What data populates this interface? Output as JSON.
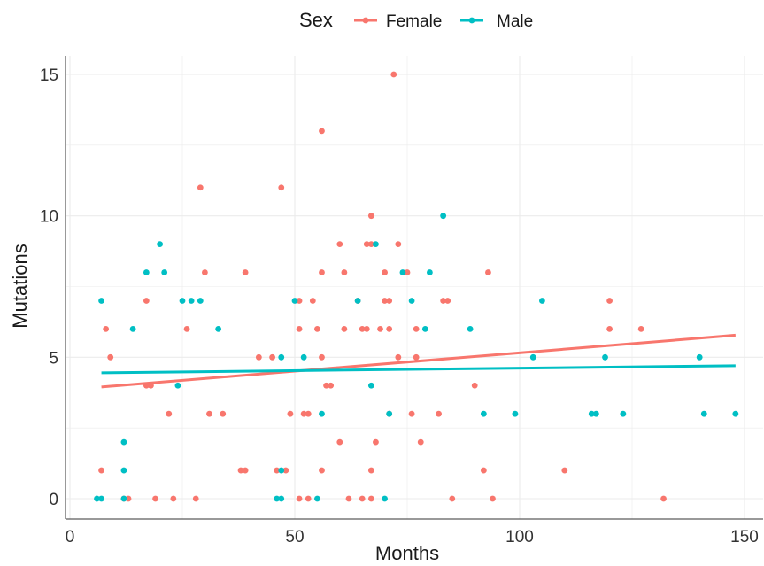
{
  "chart_data": {
    "type": "scatter",
    "title": "",
    "xlabel": "Months",
    "ylabel": "Mutations",
    "xlim": [
      0,
      150
    ],
    "ylim": [
      0,
      15
    ],
    "x_ticks": [
      "0",
      "50",
      "100",
      "150"
    ],
    "y_ticks": [
      "0",
      "5",
      "10",
      "15"
    ],
    "grid": true,
    "legend": {
      "title": "Sex",
      "placement": "top"
    },
    "series": [
      {
        "name": "Female",
        "color": "#F8766D",
        "trend": {
          "x": [
            7,
            148
          ],
          "y": [
            3.95,
            5.78
          ]
        },
        "points": [
          [
            7,
            1
          ],
          [
            8,
            6
          ],
          [
            9,
            5
          ],
          [
            12,
            0
          ],
          [
            13,
            0
          ],
          [
            17,
            7
          ],
          [
            17,
            4
          ],
          [
            18,
            4
          ],
          [
            19,
            0
          ],
          [
            22,
            3
          ],
          [
            23,
            0
          ],
          [
            26,
            6
          ],
          [
            28,
            0
          ],
          [
            29,
            11
          ],
          [
            30,
            8
          ],
          [
            31,
            3
          ],
          [
            34,
            3
          ],
          [
            38,
            1
          ],
          [
            39,
            1
          ],
          [
            39,
            8
          ],
          [
            42,
            5
          ],
          [
            45,
            5
          ],
          [
            46,
            1
          ],
          [
            47,
            11
          ],
          [
            48,
            1
          ],
          [
            49,
            3
          ],
          [
            51,
            7
          ],
          [
            51,
            6
          ],
          [
            51,
            0
          ],
          [
            52,
            3
          ],
          [
            53,
            3
          ],
          [
            53,
            0
          ],
          [
            54,
            7
          ],
          [
            55,
            6
          ],
          [
            56,
            13
          ],
          [
            56,
            8
          ],
          [
            56,
            5
          ],
          [
            56,
            1
          ],
          [
            57,
            4
          ],
          [
            58,
            4
          ],
          [
            60,
            9
          ],
          [
            60,
            2
          ],
          [
            61,
            8
          ],
          [
            61,
            6
          ],
          [
            62,
            0
          ],
          [
            64,
            7
          ],
          [
            65,
            0
          ],
          [
            65,
            6
          ],
          [
            66,
            6
          ],
          [
            66,
            9
          ],
          [
            67,
            10
          ],
          [
            67,
            9
          ],
          [
            67,
            1
          ],
          [
            67,
            0
          ],
          [
            68,
            2
          ],
          [
            69,
            6
          ],
          [
            70,
            8
          ],
          [
            70,
            7
          ],
          [
            71,
            7
          ],
          [
            71,
            6
          ],
          [
            71,
            3
          ],
          [
            72,
            15
          ],
          [
            73,
            9
          ],
          [
            73,
            5
          ],
          [
            75,
            8
          ],
          [
            76,
            3
          ],
          [
            77,
            6
          ],
          [
            77,
            5
          ],
          [
            78,
            2
          ],
          [
            82,
            3
          ],
          [
            83,
            7
          ],
          [
            84,
            7
          ],
          [
            85,
            0
          ],
          [
            90,
            4
          ],
          [
            92,
            1
          ],
          [
            93,
            8
          ],
          [
            94,
            0
          ],
          [
            110,
            1
          ],
          [
            120,
            7
          ],
          [
            120,
            6
          ],
          [
            127,
            6
          ],
          [
            132,
            0
          ]
        ]
      },
      {
        "name": "Male",
        "color": "#00BFC4",
        "trend": {
          "x": [
            7,
            148
          ],
          "y": [
            4.45,
            4.7
          ]
        },
        "points": [
          [
            6,
            0
          ],
          [
            7,
            7
          ],
          [
            7,
            0
          ],
          [
            12,
            1
          ],
          [
            12,
            2
          ],
          [
            12,
            0
          ],
          [
            14,
            6
          ],
          [
            17,
            8
          ],
          [
            20,
            9
          ],
          [
            21,
            8
          ],
          [
            24,
            4
          ],
          [
            25,
            7
          ],
          [
            27,
            7
          ],
          [
            29,
            7
          ],
          [
            33,
            6
          ],
          [
            46,
            0
          ],
          [
            47,
            5
          ],
          [
            47,
            1
          ],
          [
            47,
            0
          ],
          [
            50,
            7
          ],
          [
            52,
            5
          ],
          [
            55,
            0
          ],
          [
            56,
            3
          ],
          [
            64,
            7
          ],
          [
            67,
            4
          ],
          [
            68,
            9
          ],
          [
            70,
            0
          ],
          [
            71,
            3
          ],
          [
            74,
            8
          ],
          [
            76,
            7
          ],
          [
            79,
            6
          ],
          [
            80,
            8
          ],
          [
            83,
            10
          ],
          [
            89,
            6
          ],
          [
            92,
            3
          ],
          [
            99,
            3
          ],
          [
            103,
            5
          ],
          [
            105,
            7
          ],
          [
            116,
            3
          ],
          [
            117,
            3
          ],
          [
            119,
            5
          ],
          [
            123,
            3
          ],
          [
            140,
            5
          ],
          [
            141,
            3
          ],
          [
            148,
            3
          ]
        ]
      }
    ]
  }
}
